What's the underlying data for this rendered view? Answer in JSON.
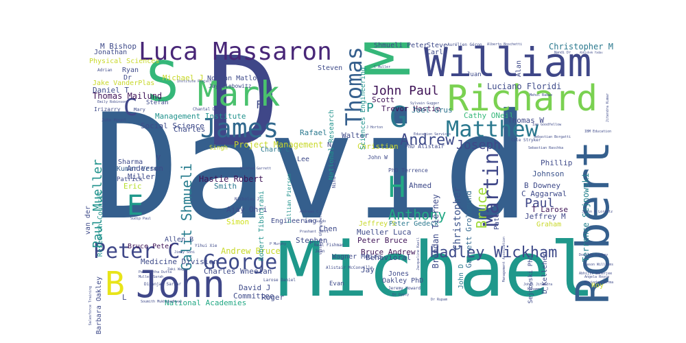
{
  "word_cloud": {
    "palette": {
      "dark_purple": "#3e1256",
      "indigo": "#3f4788",
      "blue": "#355f8d",
      "teal": "#218f8d",
      "green": "#35b779",
      "lime": "#7ad151",
      "yellow": "#c8d82a",
      "bright_yellow": "#e8e419"
    },
    "words": [
      {
        "text": "David",
        "color": "#355f8d"
      },
      {
        "text": "Michael",
        "color": "#1f988b"
      },
      {
        "text": "D",
        "color": "#3f4788"
      },
      {
        "text": "M",
        "color": "#35b779"
      },
      {
        "text": "William",
        "color": "#3f4788"
      },
      {
        "text": "Robert",
        "color": "#355f8d"
      },
      {
        "text": "Richard",
        "color": "#7ad151"
      },
      {
        "text": "Mark",
        "color": "#4ac16d"
      },
      {
        "text": "S",
        "color": "#35b779"
      },
      {
        "text": "John",
        "color": "#3f4788"
      },
      {
        "text": "Luca Massaron",
        "color": "#482677"
      },
      {
        "text": "James",
        "color": "#31688e"
      },
      {
        "text": "Thomas",
        "color": "#355f8d"
      },
      {
        "text": "George",
        "color": "#3e4a89"
      },
      {
        "text": "Matthew",
        "color": "#2a788e"
      },
      {
        "text": "Martin",
        "color": "#3f4788"
      },
      {
        "text": "Peter C",
        "color": "#3f4788"
      },
      {
        "text": "Hadley Wickham",
        "color": "#3e4a89"
      },
      {
        "text": "H",
        "color": "#22a884"
      },
      {
        "text": "G",
        "color": "#2a788e"
      },
      {
        "text": "E",
        "color": "#1f988b"
      },
      {
        "text": "B",
        "color": "#e8e419"
      },
      {
        "text": "C",
        "color": "#404688"
      },
      {
        "text": "Galit Shmueli",
        "color": "#287d8e"
      },
      {
        "text": "Paul Mueller",
        "color": "#20928c"
      },
      {
        "text": "Anthony",
        "color": "#22a884"
      },
      {
        "text": "Andrew",
        "color": "#3e4a89"
      },
      {
        "text": "Joseph",
        "color": "#3f4788"
      },
      {
        "text": "John Paul",
        "color": "#3e1256"
      },
      {
        "text": "Paul",
        "color": "#3f4788"
      },
      {
        "text": "Bruce",
        "color": "#a0da39"
      },
      {
        "text": "Christopher",
        "color": "#3b528b"
      },
      {
        "text": "Brendan Tierney",
        "color": "#3e4a89"
      },
      {
        "text": "Garrett Grolemund",
        "color": "#31688e"
      },
      {
        "text": "Terrence Sejnowski",
        "color": "#26828e"
      },
      {
        "text": "Luciano Floridi",
        "color": "#3e4a89"
      },
      {
        "text": "Christopher M",
        "color": "#2a788e"
      },
      {
        "text": "Trevor Hastie",
        "color": "#3e1256"
      },
      {
        "text": "Joel Grus",
        "color": "#2c728e"
      },
      {
        "text": "Cathy ONeil",
        "color": "#35b779"
      },
      {
        "text": "Thomas W",
        "color": "#3f4788"
      },
      {
        "text": "Phillip",
        "color": "#3e4a89"
      },
      {
        "text": "Johnson",
        "color": "#3b528b"
      },
      {
        "text": "B Downey",
        "color": "#3e4a89"
      },
      {
        "text": "C Aggarwal",
        "color": "#3e4a89"
      },
      {
        "text": "T Larose",
        "color": "#3e1256"
      },
      {
        "text": "Jeffrey M",
        "color": "#3f4788"
      },
      {
        "text": "Graham",
        "color": "#c8d82a"
      },
      {
        "text": "Roy",
        "color": "#c8d82a"
      },
      {
        "text": "Sharma",
        "color": "#3e4a89"
      },
      {
        "text": "Kumar Verma",
        "color": "#355f8d"
      },
      {
        "text": "Patrick",
        "color": "#3e4a89"
      },
      {
        "text": "Anderson",
        "color": "#3e4a89"
      },
      {
        "text": "Miller",
        "color": "#3e4a89"
      },
      {
        "text": "Eric",
        "color": "#b5de2b"
      },
      {
        "text": "V",
        "color": "#3f4788"
      },
      {
        "text": "Hastie Robert",
        "color": "#3e1256"
      },
      {
        "text": "Smith",
        "color": "#2a788e"
      },
      {
        "text": "Simon",
        "color": "#d0e11c"
      },
      {
        "text": "Ajay Ohri",
        "color": "#3e4a89"
      },
      {
        "text": "Andrew Bruce",
        "color": "#c8d82a"
      },
      {
        "text": "Bruce Peter",
        "color": "#3e1256"
      },
      {
        "text": "Allen B",
        "color": "#3e4a89"
      },
      {
        "text": "Medicine Division",
        "color": "#3e4a89"
      },
      {
        "text": "Charles Wheelan",
        "color": "#3e4a89"
      },
      {
        "text": "National Academies",
        "color": "#22a884"
      },
      {
        "text": "Committee",
        "color": "#3e4a89"
      },
      {
        "text": "Roger",
        "color": "#3e4a89"
      },
      {
        "text": "David J",
        "color": "#3e4a89"
      },
      {
        "text": "Stephen",
        "color": "#3e4a89"
      },
      {
        "text": "Peter Bruce",
        "color": "#3e1256"
      },
      {
        "text": "Bruce Andrew",
        "color": "#3e1256"
      },
      {
        "text": "Behavioral",
        "color": "#3e4a89"
      },
      {
        "text": "Wagner Meira",
        "color": "#3e4a89"
      },
      {
        "text": "Jay",
        "color": "#3e4a89"
      },
      {
        "text": "Jones",
        "color": "#3e4a89"
      },
      {
        "text": "Oakley PhD",
        "color": "#3e4a89"
      },
      {
        "text": "Evan",
        "color": "#3e4a89"
      },
      {
        "text": "John D",
        "color": "#2a788e"
      },
      {
        "text": "Peter Gedeck",
        "color": "#2a788e"
      },
      {
        "text": "Mueller Luca",
        "color": "#3e4a89"
      },
      {
        "text": "Jeffrey S",
        "color": "#c8d82a"
      },
      {
        "text": "Chen",
        "color": "#3e4a89"
      },
      {
        "text": "Ahmed",
        "color": "#3e4a89"
      },
      {
        "text": "Project Management",
        "color": "#c8d82a"
      },
      {
        "text": "Management Institute",
        "color": "#20928c"
      },
      {
        "text": "Social Science",
        "color": "#3e4a89"
      },
      {
        "text": "Charles",
        "color": "#3e4a89"
      },
      {
        "text": "Rafael",
        "color": "#2a788e"
      },
      {
        "text": "Walter",
        "color": "#3e4a89"
      },
      {
        "text": "Christian",
        "color": "#c8d82a"
      },
      {
        "text": "Scott",
        "color": "#3e1256"
      },
      {
        "text": "Charu C",
        "color": "#2a788e"
      },
      {
        "text": "Lee",
        "color": "#3e4a89"
      },
      {
        "text": "Singh",
        "color": "#c8d82a"
      },
      {
        "text": "Daniel T",
        "color": "#3e4a89"
      },
      {
        "text": "Thomas Mailund",
        "color": "#3e1256"
      },
      {
        "text": "Michael J",
        "color": "#c8d82a"
      },
      {
        "text": "Norman Matloff",
        "color": "#3e4a89"
      },
      {
        "text": "Jay Liebowitz",
        "color": "#3e4a89"
      },
      {
        "text": "Ryan",
        "color": "#3e4a89"
      },
      {
        "text": "Jake VanderPlas",
        "color": "#c8d82a"
      },
      {
        "text": "Physical Sciences",
        "color": "#c8d82a"
      },
      {
        "text": "Jonathan",
        "color": "#3e4a89"
      },
      {
        "text": "M Bishop",
        "color": "#3e4a89"
      },
      {
        "text": "Stefan",
        "color": "#3e4a89"
      },
      {
        "text": "Shmueli Peter",
        "color": "#3e4a89"
      },
      {
        "text": "Steve",
        "color": "#3e4a89"
      },
      {
        "text": "Carl",
        "color": "#3e4a89"
      },
      {
        "text": "Steven",
        "color": "#3e4a89"
      },
      {
        "text": "F",
        "color": "#3e4a89"
      },
      {
        "text": "P",
        "color": "#20928c"
      },
      {
        "text": "N",
        "color": "#3e4a89"
      },
      {
        "text": "Alan",
        "color": "#3e4a89"
      },
      {
        "text": "Juan",
        "color": "#3e4a89"
      },
      {
        "text": "Sciences Engineering",
        "color": "#20928c"
      },
      {
        "text": "National Research",
        "color": "#20928c"
      },
      {
        "text": "Research Council",
        "color": "#20928c"
      },
      {
        "text": "Robert Tibshirani",
        "color": "#20928c"
      },
      {
        "text": "Engineering",
        "color": "#3e4a89"
      },
      {
        "text": "van der",
        "color": "#3e4a89"
      },
      {
        "text": "Barbara Oakley",
        "color": "#3e4a89"
      },
      {
        "text": "L",
        "color": "#3e4a89"
      },
      {
        "text": "Lillian Pierson",
        "color": "#20928c"
      },
      {
        "text": "Nina Zumel",
        "color": "#3e4a89"
      },
      {
        "text": "PhD Terrence",
        "color": "#3e4a89"
      },
      {
        "text": "PhD Alistair",
        "color": "#3e4a89"
      },
      {
        "text": "John W",
        "color": "#3e4a89"
      },
      {
        "text": "Patel",
        "color": "#3e4a89"
      },
      {
        "text": "D Kelleher",
        "color": "#3e4a89"
      },
      {
        "text": "Sejnowski PhD",
        "color": "#3e4a89"
      },
      {
        "text": "Dr",
        "color": "#3e4a89"
      },
      {
        "text": "Irizarry",
        "color": "#3e4a89"
      },
      {
        "text": "Mary",
        "color": "#3e4a89"
      },
      {
        "text": "Chantal D",
        "color": "#3e4a89"
      },
      {
        "text": "Sudip Paul",
        "color": "#3e4a89"
      },
      {
        "text": "Nicholas J",
        "color": "#3e4a89"
      },
      {
        "text": "Wickham Garrett",
        "color": "#3e4a89"
      },
      {
        "text": "Yihui Xie",
        "color": "#3e4a89"
      },
      {
        "text": "Jimmy Soni",
        "color": "#3e4a89"
      },
      {
        "text": "P Murphy",
        "color": "#3e4a89"
      },
      {
        "text": "Neal Fishman",
        "color": "#3e4a89"
      },
      {
        "text": "Jean",
        "color": "#3e4a89"
      },
      {
        "text": "Sarah Guido",
        "color": "#3e4a89"
      },
      {
        "text": "Prashant Johri",
        "color": "#3e4a89"
      },
      {
        "text": "Andreas C",
        "color": "#3e4a89"
      },
      {
        "text": "Jeremy Howard",
        "color": "#3e4a89"
      },
      {
        "text": "Larose Daniel",
        "color": "#3e4a89"
      },
      {
        "text": "Zaki Wagner",
        "color": "#3e4a89"
      },
      {
        "text": "Dipanjan Sarkar",
        "color": "#3e4a89"
      },
      {
        "text": "Soumith Mukhopadhyay",
        "color": "#3e4a89"
      },
      {
        "text": "Johri Jitendra",
        "color": "#3e4a89"
      },
      {
        "text": "Mohammed J",
        "color": "#3e4a89"
      },
      {
        "text": "Dr Rupam",
        "color": "#3e4a89"
      },
      {
        "text": "Dr Gypsy",
        "color": "#3e4a89"
      },
      {
        "text": "Aurélien Géron",
        "color": "#3e4a89"
      },
      {
        "text": "Alberto Boschetti",
        "color": "#3e4a89"
      },
      {
        "text": "Nandi Dr",
        "color": "#3e4a89"
      },
      {
        "text": "Abhishek Yadav",
        "color": "#3e4a89"
      },
      {
        "text": "Mehul Bakwe",
        "color": "#3e4a89"
      },
      {
        "text": "Jitendra Kumar",
        "color": "#3e4a89"
      },
      {
        "text": "Ian Goodfellow",
        "color": "#3e4a89"
      },
      {
        "text": "Sebastian Raschka",
        "color": "#3e4a89"
      },
      {
        "text": "Cole Stryker",
        "color": "#3e4a89"
      },
      {
        "text": "Education Services",
        "color": "#3e4a89"
      },
      {
        "text": "Sylvain Gugger",
        "color": "#3e4a89"
      },
      {
        "text": "J Horton",
        "color": "#3e4a89"
      },
      {
        "text": "C Muller",
        "color": "#3e4a89"
      },
      {
        "text": "Institute Project",
        "color": "#3e4a89"
      },
      {
        "text": "Adrian",
        "color": "#3e4a89"
      },
      {
        "text": "Emily Robinson",
        "color": "#3e4a89"
      },
      {
        "text": "John Mount",
        "color": "#3e4a89"
      },
      {
        "text": "Paramartha Dutta",
        "color": "#3e4a89"
      },
      {
        "text": "Muller Sarah",
        "color": "#3e4a89"
      },
      {
        "text": "Alistair McConville",
        "color": "#3e4a89"
      },
      {
        "text": "Vittorio Ghiringhelli",
        "color": "#3e4a89"
      },
      {
        "text": "Jacqueline Kazil",
        "color": "#3e4a89"
      },
      {
        "text": "Management Association",
        "color": "#3e4a89"
      },
      {
        "text": "Jason W Lorentz",
        "color": "#3e4a89"
      },
      {
        "text": "Douglas Lackey",
        "color": "#3e4a89"
      },
      {
        "text": "Abhijit Banerjee",
        "color": "#3e4a89"
      },
      {
        "text": "IBM Education",
        "color": "#3e4a89"
      },
      {
        "text": "Jason Williams",
        "color": "#3e4a89"
      },
      {
        "text": "Angela Royce",
        "color": "#3e4a89"
      },
      {
        "text": "Ravindra Verma",
        "color": "#3e4a89"
      },
      {
        "text": "Sebastian Borgatti",
        "color": "#3e4a89"
      },
      {
        "text": "Salesforce Training",
        "color": "#3e4a89"
      }
    ]
  }
}
